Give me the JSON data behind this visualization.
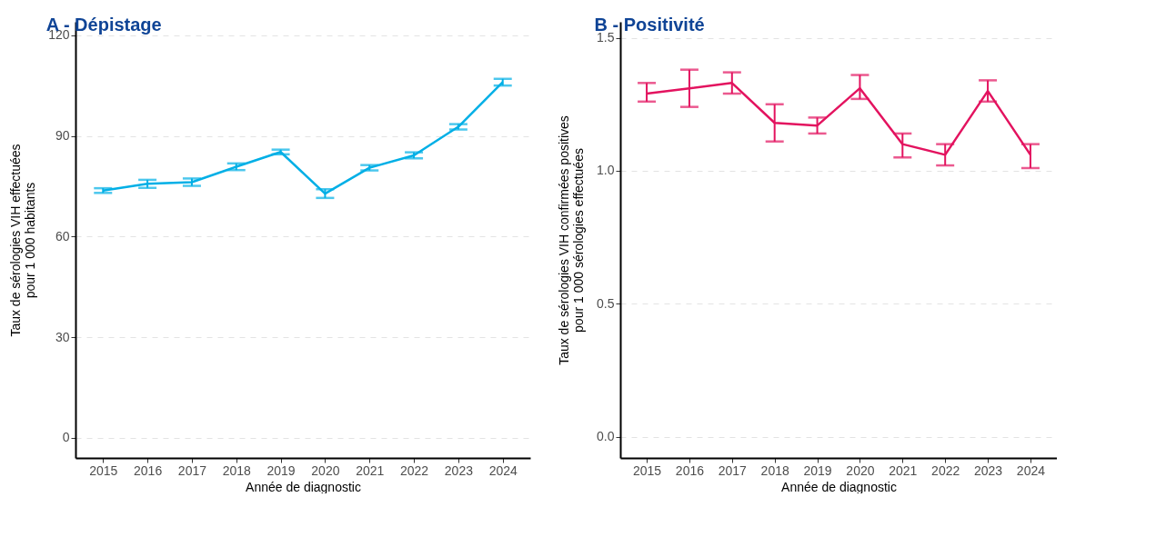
{
  "chart_data": [
    {
      "type": "line",
      "title": "A - Dépistage",
      "xlabel": "Année de diagnostic",
      "ylabel": "Taux de sérologies VIH effectuées\npour 1 000 habitants",
      "categories": [
        "2015",
        "2016",
        "2017",
        "2018",
        "2019",
        "2020",
        "2021",
        "2022",
        "2023",
        "2024"
      ],
      "values": [
        73.7,
        75.7,
        76.2,
        80.8,
        85.2,
        72.8,
        80.5,
        84.2,
        92.7,
        106.0
      ],
      "errors": [
        0.7,
        1.2,
        1.1,
        1.0,
        0.7,
        1.3,
        0.8,
        0.9,
        0.8,
        1.0
      ],
      "color": "#00afe6",
      "ylim": [
        -6,
        124
      ],
      "yticks": [
        0,
        30,
        60,
        90,
        120
      ],
      "grid": "y"
    },
    {
      "type": "line",
      "title": "B - Positivité",
      "xlabel": "Année de diagnostic",
      "ylabel": "Taux de sérologies VIH confirmées positives\npour 1 000 sérologies effectuées",
      "categories": [
        "2015",
        "2016",
        "2017",
        "2018",
        "2019",
        "2020",
        "2021",
        "2022",
        "2023",
        "2024"
      ],
      "values": [
        1.29,
        1.31,
        1.33,
        1.18,
        1.17,
        1.31,
        1.1,
        1.06,
        1.3,
        1.06
      ],
      "errors": [
        [
          1.26,
          1.33
        ],
        [
          1.24,
          1.38
        ],
        [
          1.29,
          1.37
        ],
        [
          1.11,
          1.25
        ],
        [
          1.14,
          1.2
        ],
        [
          1.27,
          1.36
        ],
        [
          1.05,
          1.14
        ],
        [
          1.02,
          1.1
        ],
        [
          1.26,
          1.34
        ],
        [
          1.01,
          1.1
        ]
      ],
      "color": "#e3135f",
      "ylim": [
        -0.08,
        1.56
      ],
      "yticks": [
        {
          "value": 0,
          "label": "0.0"
        },
        0.5,
        {
          "value": 1,
          "label": "1.0"
        },
        1.5
      ],
      "grid": "y"
    }
  ]
}
